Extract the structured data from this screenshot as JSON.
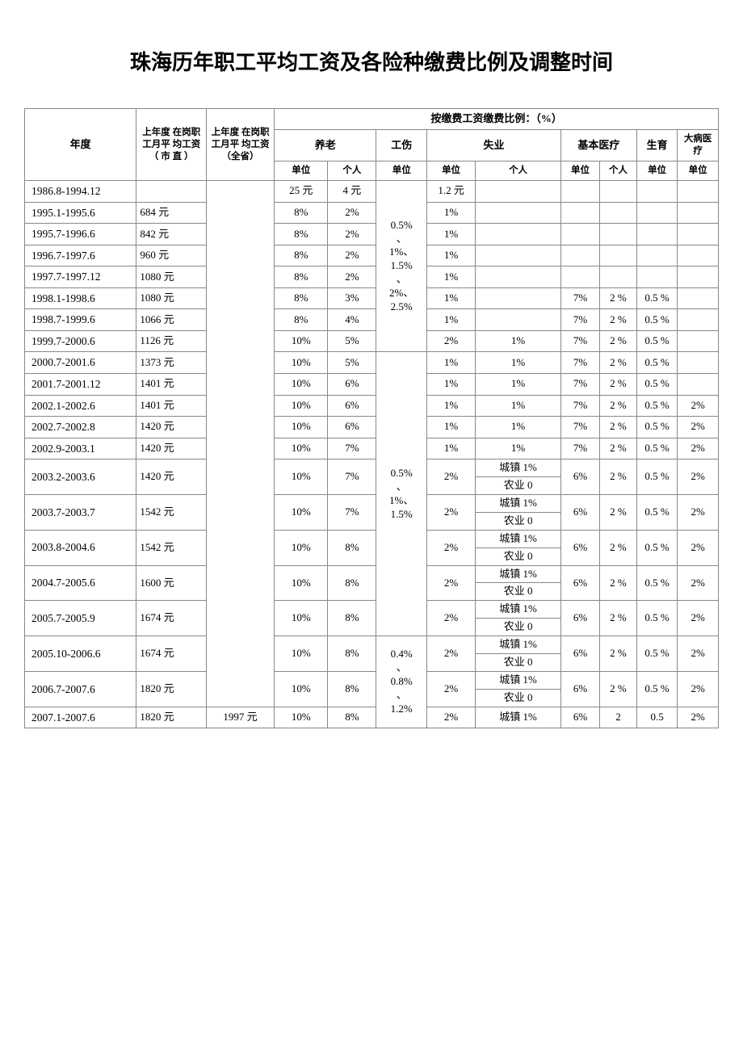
{
  "title": "珠海历年职工平均工资及各险种缴费比例及调整时间",
  "headers": {
    "year": "年度",
    "prev_wage_city": "上年度 在岗职 工月平 均工资（ 市 直 ）",
    "prev_wage_prov": "上年度 在岗职 工月平 均工资（全省）",
    "ratio_title": "按缴费工资缴费比例：（%）",
    "pension": "养老",
    "injury": "工伤",
    "unemployment": "失业",
    "medical": "基本医疗",
    "maternity": "生育",
    "major": "大病医疗",
    "unit": "单位",
    "person": "个人"
  },
  "injury_merged1": "0.5%\n、\n1%、\n1.5%\n、\n2%、\n2.5%",
  "injury_merged2": "0.5%\n、\n1%、\n1.5%",
  "injury_merged3": "0.4%\n、\n0.8%\n、\n1.2%",
  "rows": [
    {
      "year": "1986.8-1994.12",
      "wage_city": "",
      "pension_dw": "25 元",
      "pension_gr": "4 元",
      "sy_dw": "1.2 元",
      "sy_gr": "",
      "yy_dw": "",
      "yy_gr": "",
      "sy2": "",
      "db": ""
    },
    {
      "year": "1995.1-1995.6",
      "wage_city": "684 元",
      "pension_dw": "8%",
      "pension_gr": "2%",
      "sy_dw": "1%",
      "sy_gr": "",
      "yy_dw": "",
      "yy_gr": "",
      "sy2": "",
      "db": ""
    },
    {
      "year": "1995.7-1996.6",
      "wage_city": "842 元",
      "pension_dw": "8%",
      "pension_gr": "2%",
      "sy_dw": "1%",
      "sy_gr": "",
      "yy_dw": "",
      "yy_gr": "",
      "sy2": "",
      "db": ""
    },
    {
      "year": "1996.7-1997.6",
      "wage_city": "960 元",
      "pension_dw": "8%",
      "pension_gr": "2%",
      "sy_dw": "1%",
      "sy_gr": "",
      "yy_dw": "",
      "yy_gr": "",
      "sy2": "",
      "db": ""
    },
    {
      "year": "1997.7-1997.12",
      "wage_city": "1080 元",
      "pension_dw": "8%",
      "pension_gr": "2%",
      "sy_dw": "1%",
      "sy_gr": "",
      "yy_dw": "",
      "yy_gr": "",
      "sy2": "",
      "db": ""
    },
    {
      "year": "1998.1-1998.6",
      "wage_city": "1080 元",
      "pension_dw": "8%",
      "pension_gr": "3%",
      "sy_dw": "1%",
      "sy_gr": "",
      "yy_dw": "7%",
      "yy_gr": "2 %",
      "sy2": "0.5 %",
      "db": ""
    },
    {
      "year": "1998.7-1999.6",
      "wage_city": "1066 元",
      "pension_dw": "8%",
      "pension_gr": "4%",
      "sy_dw": "1%",
      "sy_gr": "",
      "yy_dw": "7%",
      "yy_gr": "2 %",
      "sy2": "0.5 %",
      "db": ""
    },
    {
      "year": "1999.7-2000.6",
      "wage_city": "1126 元",
      "pension_dw": "10%",
      "pension_gr": "5%",
      "sy_dw": "2%",
      "sy_gr": "1%",
      "yy_dw": "7%",
      "yy_gr": "2 %",
      "sy2": "0.5 %",
      "db": ""
    },
    {
      "year": "2000.7-2001.6",
      "wage_city": "1373 元",
      "pension_dw": "10%",
      "pension_gr": "5%",
      "sy_dw": "1%",
      "sy_gr": "1%",
      "yy_dw": "7%",
      "yy_gr": "2 %",
      "sy2": "0.5 %",
      "db": ""
    },
    {
      "year": "2001.7-2001.12",
      "wage_city": "1401 元",
      "pension_dw": "10%",
      "pension_gr": "6%",
      "sy_dw": "1%",
      "sy_gr": "1%",
      "yy_dw": "7%",
      "yy_gr": "2 %",
      "sy2": "0.5 %",
      "db": ""
    },
    {
      "year": "2002.1-2002.6",
      "wage_city": "1401 元",
      "pension_dw": "10%",
      "pension_gr": "6%",
      "sy_dw": "1%",
      "sy_gr": "1%",
      "yy_dw": "7%",
      "yy_gr": "2 %",
      "sy2": "0.5 %",
      "db": "2%"
    },
    {
      "year": "2002.7-2002.8",
      "wage_city": "1420 元",
      "pension_dw": "10%",
      "pension_gr": "6%",
      "sy_dw": "1%",
      "sy_gr": "1%",
      "yy_dw": "7%",
      "yy_gr": "2 %",
      "sy2": "0.5 %",
      "db": "2%"
    },
    {
      "year": "2002.9-2003.1",
      "wage_city": "1420 元",
      "pension_dw": "10%",
      "pension_gr": "7%",
      "sy_dw": "1%",
      "sy_gr": "1%",
      "yy_dw": "7%",
      "yy_gr": "2 %",
      "sy2": "0.5 %",
      "db": "2%"
    },
    {
      "year": "2003.2-2003.6",
      "wage_city": "1420 元",
      "pension_dw": "10%",
      "pension_gr": "7%",
      "sy_dw": "2%",
      "sy_gr_a": "城镇 1%",
      "sy_gr_b": "农业 0",
      "yy_dw": "6%",
      "yy_gr": "2 %",
      "sy2": "0.5 %",
      "db": "2%"
    },
    {
      "year": "2003.7-2003.7",
      "wage_city": "1542 元",
      "pension_dw": "10%",
      "pension_gr": "7%",
      "sy_dw": "2%",
      "sy_gr_a": "城镇 1%",
      "sy_gr_b": "农业 0",
      "yy_dw": "6%",
      "yy_gr": "2 %",
      "sy2": "0.5 %",
      "db": "2%"
    },
    {
      "year": "2003.8-2004.6",
      "wage_city": "1542 元",
      "pension_dw": "10%",
      "pension_gr": "8%",
      "sy_dw": "2%",
      "sy_gr_a": "城镇 1%",
      "sy_gr_b": "农业 0",
      "yy_dw": "6%",
      "yy_gr": "2 %",
      "sy2": "0.5 %",
      "db": "2%"
    },
    {
      "year": "2004.7-2005.6",
      "wage_city": "1600 元",
      "pension_dw": "10%",
      "pension_gr": "8%",
      "sy_dw": "2%",
      "sy_gr_a": "城镇 1%",
      "sy_gr_b": "农业 0",
      "yy_dw": "6%",
      "yy_gr": "2 %",
      "sy2": "0.5 %",
      "db": "2%"
    },
    {
      "year": "2005.7-2005.9",
      "wage_city": "1674 元",
      "pension_dw": "10%",
      "pension_gr": "8%",
      "sy_dw": "2%",
      "sy_gr_a": "城镇 1%",
      "sy_gr_b": "农业 0",
      "yy_dw": "6%",
      "yy_gr": "2 %",
      "sy2": "0.5 %",
      "db": "2%"
    },
    {
      "year": "2005.10-2006.6",
      "wage_city": "1674 元",
      "pension_dw": "10%",
      "pension_gr": "8%",
      "sy_dw": "2%",
      "sy_gr_a": "城镇 1%",
      "sy_gr_b": "农业 0",
      "yy_dw": "6%",
      "yy_gr": "2 %",
      "sy2": "0.5 %",
      "db": "2%"
    },
    {
      "year": "2006.7-2007.6",
      "wage_city": "1820 元",
      "pension_dw": "10%",
      "pension_gr": "8%",
      "sy_dw": "2%",
      "sy_gr_a": "城镇 1%",
      "sy_gr_b": "农业 0",
      "yy_dw": "6%",
      "yy_gr": "2 %",
      "sy2": "0.5 %",
      "db": "2%"
    },
    {
      "year": "2007.1-2007.6",
      "wage_city": "1820 元",
      "wage_prov": "1997 元",
      "pension_dw": "10%",
      "pension_gr": "8%",
      "sy_dw": "2%",
      "sy_gr": "城镇 1%",
      "yy_dw": "6%",
      "yy_gr": "2",
      "sy2": "0.5",
      "db": "2%"
    }
  ]
}
